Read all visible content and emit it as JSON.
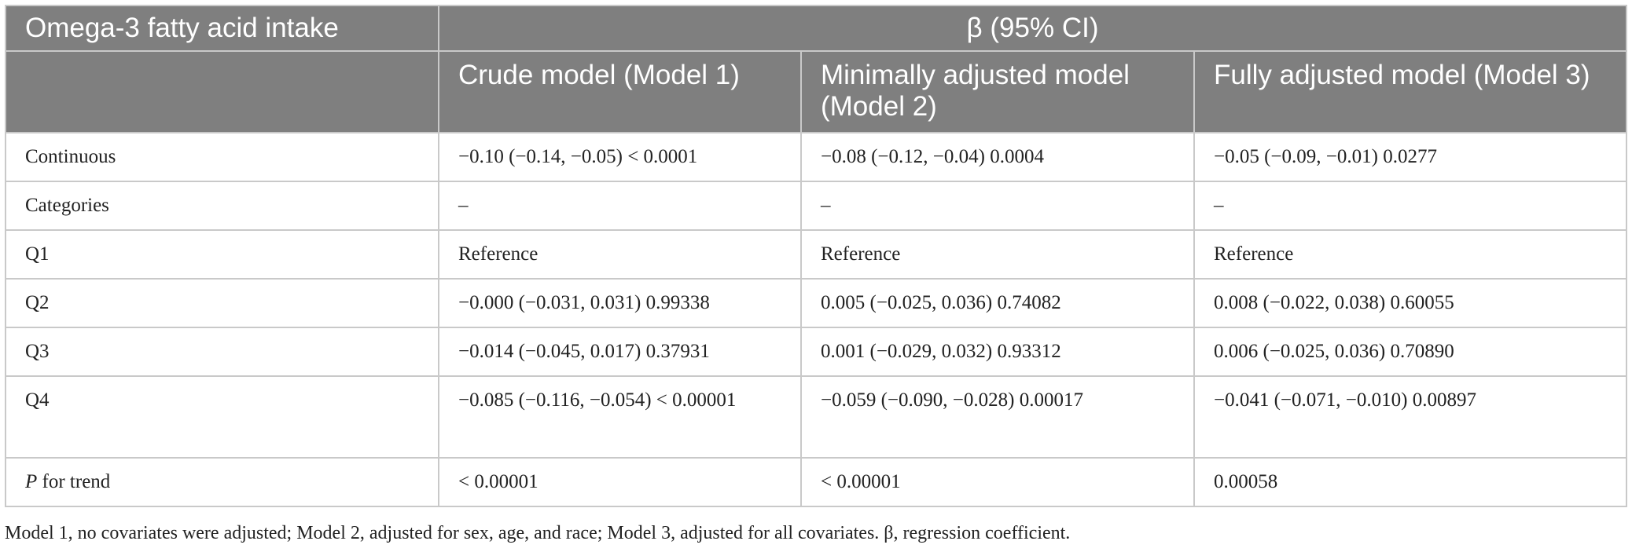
{
  "table": {
    "header_row1": {
      "col0": "Omega-3 fatty acid intake",
      "span": "β (95% CI)"
    },
    "header_row2": {
      "col1": "Crude model (Model 1)",
      "col2": "Minimally adjusted model (Model 2)",
      "col3": "Fully adjusted model (Model 3)"
    },
    "rows": [
      {
        "label": "Continuous",
        "m1": "−0.10 (−0.14, −0.05) < 0.0001",
        "m2": "−0.08 (−0.12, −0.04) 0.0004",
        "m3": "−0.05 (−0.09, −0.01) 0.0277"
      },
      {
        "label": "Categories",
        "m1": "–",
        "m2": "–",
        "m3": "–"
      },
      {
        "label": "Q1",
        "m1": "Reference",
        "m2": "Reference",
        "m3": "Reference"
      },
      {
        "label": "Q2",
        "m1": "−0.000 (−0.031, 0.031) 0.99338",
        "m2": "0.005 (−0.025, 0.036) 0.74082",
        "m3": "0.008 (−0.022, 0.038) 0.60055"
      },
      {
        "label": "Q3",
        "m1": "−0.014 (−0.045, 0.017) 0.37931",
        "m2": "0.001 (−0.029, 0.032) 0.93312",
        "m3": "0.006 (−0.025, 0.036) 0.70890"
      },
      {
        "label": "Q4",
        "m1": "−0.085 (−0.116, −0.054) < 0.00001",
        "m2": "−0.059 (−0.090, −0.028) 0.00017",
        "m3": "−0.041 (−0.071, −0.010) 0.00897"
      }
    ],
    "trend_row": {
      "label_italic": "P",
      "label_rest": " for trend",
      "m1": "< 0.00001",
      "m2": "< 0.00001",
      "m3": "0.00058"
    }
  },
  "footnote": "Model 1, no covariates were adjusted; Model 2, adjusted for sex, age, and race; Model 3, adjusted for all covariates. β, regression coefficient."
}
